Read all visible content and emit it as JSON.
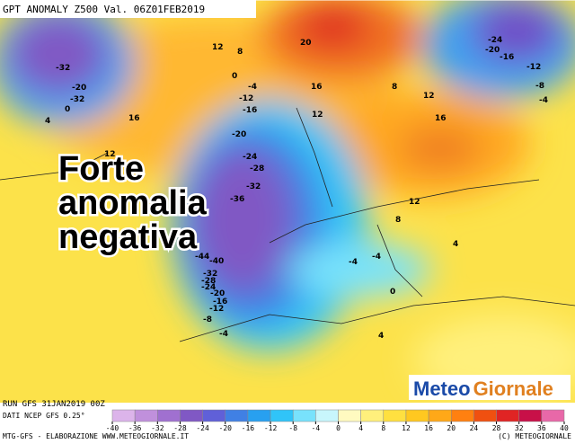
{
  "header": {
    "title": "GPT ANOMALY Z500 Val. 06Z01FEB2019"
  },
  "overlay": {
    "lines": [
      "Forte",
      "anomalia",
      "negativa"
    ]
  },
  "contour_labels": [
    -32,
    -20,
    -32,
    0,
    4,
    16,
    12,
    8,
    0,
    -4,
    -12,
    -16,
    20,
    16,
    12,
    8,
    12,
    16,
    -24,
    -20,
    -16,
    -12,
    -8,
    -4,
    -20,
    -24,
    -28,
    -32,
    -36,
    12,
    12,
    8,
    4,
    -44,
    -40,
    -32,
    -28,
    -24,
    -20,
    -16,
    -12,
    -8,
    -4,
    -4,
    -4,
    0,
    4
  ],
  "footer": {
    "run": "RUN GFS 31JAN2019 00Z",
    "source": "DATI NCEP GFS 0.25°",
    "credit": "MTG-GFS - ELABORAZIONE WWW.METEOGIORNALE.IT",
    "copyright": "(C) METEOGIORNALE"
  },
  "logo": {
    "part1": "Meteo",
    "part2": "Giornale"
  },
  "colorbar": {
    "ticks": [
      -40,
      -36,
      -32,
      -28,
      -24,
      -20,
      -16,
      -12,
      -8,
      -4,
      0,
      4,
      8,
      12,
      16,
      20,
      24,
      28,
      32,
      36,
      40
    ],
    "colors": [
      "#dcb4ea",
      "#c090dc",
      "#a070d0",
      "#8058c4",
      "#6060d8",
      "#4080e4",
      "#28a0f0",
      "#30c4f8",
      "#78e2fc",
      "#c8f6fc",
      "#fffac0",
      "#fff07c",
      "#ffe040",
      "#ffc820",
      "#ffa818",
      "#ff8010",
      "#f05010",
      "#e02424",
      "#c81048",
      "#e868a8"
    ]
  }
}
